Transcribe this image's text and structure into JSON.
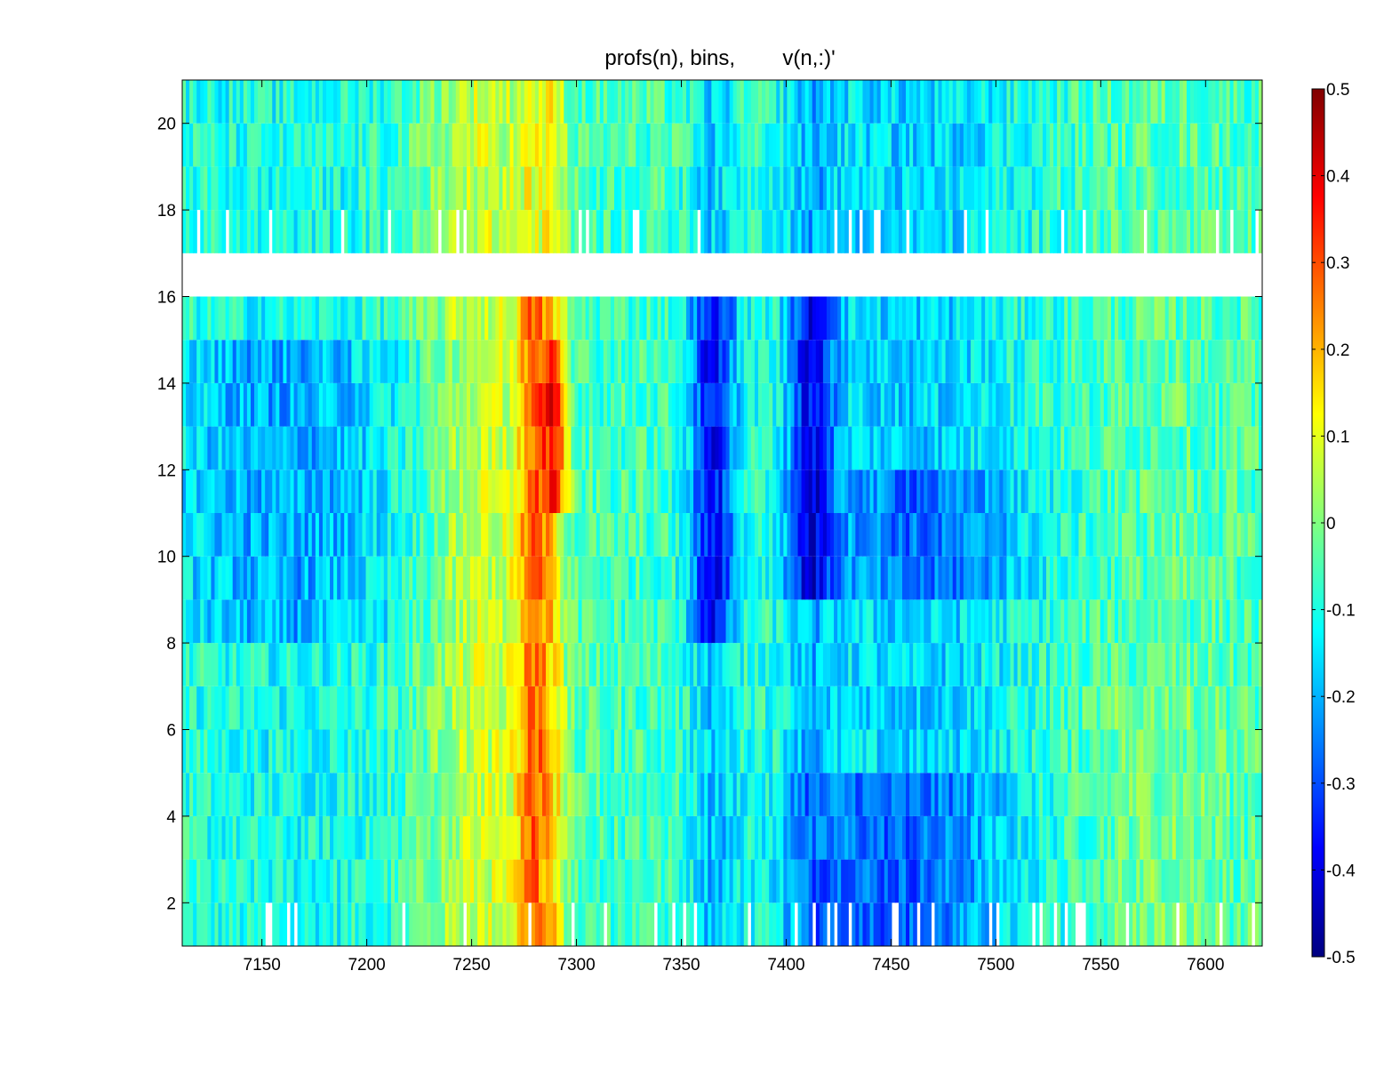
{
  "chart_data": {
    "type": "heatmap",
    "title": "profs(n), bins,        v(n,:)'",
    "xlabel": "",
    "ylabel": "",
    "x_range": [
      7112,
      7627
    ],
    "y_range": [
      1,
      21
    ],
    "xticks": [
      7150,
      7200,
      7250,
      7300,
      7350,
      7400,
      7450,
      7500,
      7550,
      7600
    ],
    "yticks": [
      2,
      4,
      6,
      8,
      10,
      12,
      14,
      16,
      18,
      20
    ],
    "grid": false,
    "colormap": "jet",
    "color_limits": [
      -0.5,
      0.5
    ],
    "colorbar": {
      "placement": "right",
      "ticks": [
        0.5,
        0.4,
        0.3,
        0.2,
        0.1,
        0,
        -0.1,
        -0.2,
        -0.3,
        -0.4,
        -0.5
      ]
    },
    "missing_rows": [
      16
    ],
    "features": [
      {
        "x_center": 7280,
        "width": 12,
        "rows": [
          1,
          15
        ],
        "value": 0.27
      },
      {
        "x_center": 7290,
        "width": 8,
        "rows": [
          11,
          14
        ],
        "value": 0.32
      },
      {
        "x_center": 7255,
        "width": 40,
        "rows": [
          1,
          20
        ],
        "value": 0.14
      },
      {
        "x_center": 7365,
        "width": 16,
        "rows": [
          8,
          15
        ],
        "value": -0.3
      },
      {
        "x_center": 7412,
        "width": 16,
        "rows": [
          9,
          15
        ],
        "value": -0.27
      },
      {
        "x_center": 7160,
        "width": 90,
        "rows": [
          8,
          14
        ],
        "value": -0.15
      },
      {
        "x_center": 7450,
        "width": 80,
        "rows": [
          1,
          4
        ],
        "value": -0.17
      },
      {
        "x_center": 7470,
        "width": 70,
        "rows": [
          9,
          11
        ],
        "value": -0.16
      },
      {
        "x_center": 7580,
        "width": 50,
        "rows": [
          1,
          6
        ],
        "value": 0.06
      }
    ]
  }
}
